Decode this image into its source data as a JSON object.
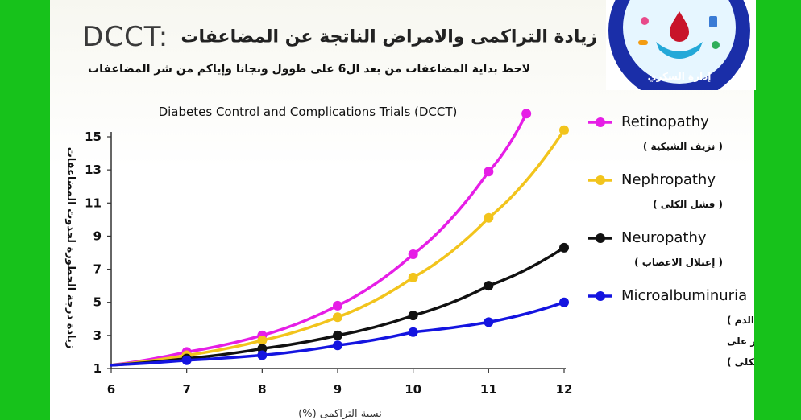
{
  "header": {
    "title_latin": "DCCT:",
    "title_arabic": "زيادة التراكمى والامراض الناتجة عن المضاعفات",
    "subtitle": "لاحظ بداية المضاعفات من بعد ال6 على طوول ونجانا وإياكم من شر المضاعفات"
  },
  "logo": {
    "text": "إدارة السكري",
    "colors": {
      "ring": "#1a2ea8",
      "inner": "#e6f6ff",
      "drop": "#c8142a",
      "hand": "#24a8d8"
    }
  },
  "colors": {
    "frame": "#17c21b",
    "retinopathy": "#e61ee6",
    "nephropathy": "#f2c41c",
    "neuropathy": "#111111",
    "microalbuminuria": "#1414e0"
  },
  "chart_data": {
    "type": "line",
    "title": "Diabetes Control and Complications Trials (DCCT)",
    "xlabel": "نسبة التراكمى (%)",
    "ylabel": "زيادة درجة الخطورة لحدوث المضاعفات",
    "xlim": [
      6,
      12
    ],
    "ylim": [
      1,
      15
    ],
    "xticks": [
      6,
      7,
      8,
      9,
      10,
      11,
      12
    ],
    "yticks": [
      1,
      3,
      5,
      7,
      9,
      11,
      13,
      15
    ],
    "grid": false,
    "legend_position": "right",
    "series": [
      {
        "name": "Retinopathy",
        "name_ar": "( نزيف الشبكية )",
        "color": "#e61ee6",
        "x": [
          6,
          7,
          8,
          9,
          10,
          11,
          11.5
        ],
        "y": [
          1.2,
          2.0,
          3.0,
          4.8,
          7.9,
          12.9,
          16.4
        ]
      },
      {
        "name": "Nephropathy",
        "name_ar": "( فشل الكلى )",
        "color": "#f2c41c",
        "x": [
          6,
          7,
          8,
          9,
          10,
          11,
          12
        ],
        "y": [
          1.2,
          1.8,
          2.7,
          4.1,
          6.5,
          10.1,
          15.4
        ]
      },
      {
        "name": "Neuropathy",
        "name_ar": "( إعتلال الاعصاب )",
        "color": "#111111",
        "x": [
          6,
          7,
          8,
          9,
          10,
          11,
          12
        ],
        "y": [
          1.2,
          1.6,
          2.2,
          3.0,
          4.2,
          6.0,
          8.3
        ]
      },
      {
        "name": "Microalbuminuria",
        "name_ar": "( وجود بروتين فى الدم مؤشر على مرض الكلى )",
        "name_ar_lines": [
          "وجود بروتين فى الدم )",
          "مؤشر على",
          "مرض الكلى    )"
        ],
        "color": "#1414e0",
        "x": [
          6,
          7,
          8,
          9,
          10,
          11,
          12
        ],
        "y": [
          1.2,
          1.5,
          1.8,
          2.4,
          3.2,
          3.8,
          5.0
        ]
      }
    ]
  }
}
